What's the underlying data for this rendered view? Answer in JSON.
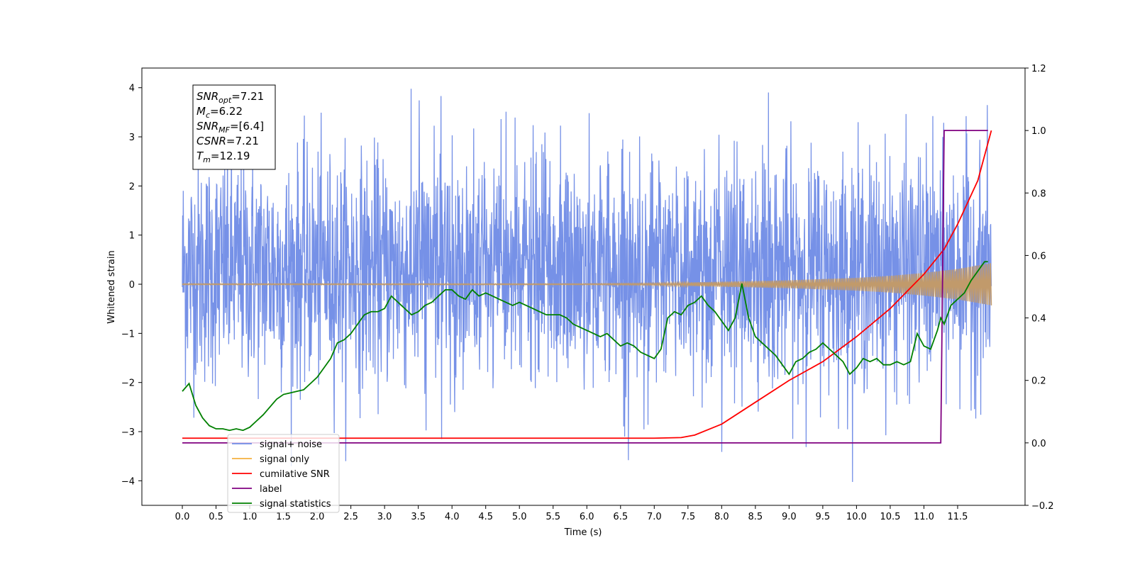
{
  "chart_data": {
    "type": "line",
    "xlabel": "Time (s)",
    "ylabel": "Whitened strain",
    "xlim": [
      -0.6,
      12.5
    ],
    "xticks": [
      0.0,
      0.5,
      1.0,
      1.5,
      2.0,
      2.5,
      3.0,
      3.5,
      4.0,
      4.5,
      5.0,
      5.5,
      6.0,
      6.5,
      7.0,
      7.5,
      8.0,
      8.5,
      9.0,
      9.5,
      10.0,
      10.5,
      11.0,
      11.5
    ],
    "ylim_left": [
      -4.5,
      4.4
    ],
    "yticks_left": [
      -4,
      -3,
      -2,
      -1,
      0,
      1,
      2,
      3,
      4
    ],
    "ylim_right": [
      -0.2,
      1.2
    ],
    "yticks_right": [
      -0.2,
      0.0,
      0.2,
      0.4,
      0.6,
      0.8,
      1.0,
      1.2
    ],
    "grid": false,
    "legend_position": "lower-left",
    "info_box": {
      "lines": [
        {
          "main": "SNR",
          "sub": "opt",
          "rest": "=7.21"
        },
        {
          "main": "M",
          "sub": "c",
          "rest": "=6.22"
        },
        {
          "main": "SNR",
          "sub": "MF",
          "rest": "=[6.4]"
        },
        {
          "main": "CSNR",
          "sub": "",
          "rest": "=7.21"
        },
        {
          "main": "T",
          "sub": "m",
          "rest": "=12.19"
        }
      ]
    },
    "legend": [
      {
        "name": "signal+ noise",
        "color": "#6f8be6"
      },
      {
        "name": "signal only",
        "color": "#f5b041"
      },
      {
        "name": "cumilative SNR",
        "color": "#ff0000"
      },
      {
        "name": "label",
        "color": "#800080"
      },
      {
        "name": "signal statistics",
        "color": "#008000"
      }
    ],
    "series": [
      {
        "name": "signal+ noise",
        "axis": "left",
        "color": "#6f8be6",
        "x_range": [
          0.0,
          12.0
        ],
        "band_mean": 0.3,
        "band_min": -4.1,
        "band_max": 4.05
      },
      {
        "name": "signal only",
        "axis": "left",
        "color": "#c19a6b",
        "envelope_x": [
          0.0,
          6.0,
          7.0,
          8.0,
          9.0,
          10.0,
          10.5,
          11.0,
          11.5,
          12.0
        ],
        "envelope_amp": [
          0.01,
          0.01,
          0.02,
          0.05,
          0.08,
          0.13,
          0.17,
          0.23,
          0.31,
          0.43
        ]
      },
      {
        "name": "cumilative SNR",
        "axis": "right",
        "color": "#ff0000",
        "x": [
          0.0,
          7.0,
          7.4,
          7.6,
          8.0,
          8.5,
          9.0,
          9.5,
          10.0,
          10.5,
          11.0,
          11.3,
          11.5,
          11.8,
          12.0
        ],
        "y": [
          0.015,
          0.015,
          0.017,
          0.025,
          0.06,
          0.13,
          0.2,
          0.26,
          0.34,
          0.43,
          0.54,
          0.62,
          0.7,
          0.84,
          1.0
        ]
      },
      {
        "name": "label",
        "axis": "right",
        "color": "#800080",
        "x": [
          0.0,
          11.25,
          11.3,
          11.95
        ],
        "y": [
          0.0,
          0.0,
          1.0,
          1.0
        ]
      },
      {
        "name": "signal statistics",
        "axis": "right",
        "color": "#008000",
        "x": [
          0.0,
          0.1,
          0.2,
          0.3,
          0.4,
          0.5,
          0.6,
          0.7,
          0.8,
          0.9,
          1.0,
          1.1,
          1.2,
          1.3,
          1.4,
          1.5,
          1.6,
          1.7,
          1.8,
          1.9,
          2.0,
          2.1,
          2.2,
          2.3,
          2.4,
          2.5,
          2.6,
          2.7,
          2.8,
          2.9,
          3.0,
          3.1,
          3.2,
          3.3,
          3.4,
          3.5,
          3.6,
          3.7,
          3.8,
          3.9,
          4.0,
          4.1,
          4.2,
          4.3,
          4.4,
          4.5,
          4.6,
          4.7,
          4.8,
          4.9,
          5.0,
          5.1,
          5.2,
          5.3,
          5.4,
          5.5,
          5.6,
          5.7,
          5.8,
          5.9,
          6.0,
          6.1,
          6.2,
          6.3,
          6.4,
          6.5,
          6.6,
          6.7,
          6.8,
          6.9,
          7.0,
          7.1,
          7.2,
          7.3,
          7.4,
          7.5,
          7.6,
          7.7,
          7.8,
          7.9,
          8.0,
          8.1,
          8.2,
          8.3,
          8.4,
          8.5,
          8.6,
          8.7,
          8.8,
          8.9,
          9.0,
          9.1,
          9.2,
          9.3,
          9.4,
          9.5,
          9.6,
          9.7,
          9.8,
          9.9,
          10.0,
          10.1,
          10.2,
          10.3,
          10.4,
          10.5,
          10.6,
          10.7,
          10.8,
          10.9,
          11.0,
          11.1,
          11.2,
          11.25,
          11.3,
          11.4,
          11.5,
          11.6,
          11.7,
          11.8,
          11.9,
          11.95
        ],
        "y": [
          0.165,
          0.19,
          0.12,
          0.08,
          0.055,
          0.045,
          0.045,
          0.04,
          0.045,
          0.04,
          0.05,
          0.07,
          0.09,
          0.115,
          0.14,
          0.155,
          0.16,
          0.165,
          0.17,
          0.19,
          0.21,
          0.24,
          0.27,
          0.32,
          0.33,
          0.35,
          0.38,
          0.41,
          0.42,
          0.42,
          0.43,
          0.47,
          0.45,
          0.43,
          0.41,
          0.42,
          0.44,
          0.45,
          0.47,
          0.49,
          0.49,
          0.47,
          0.46,
          0.49,
          0.47,
          0.48,
          0.47,
          0.46,
          0.45,
          0.44,
          0.45,
          0.44,
          0.43,
          0.42,
          0.41,
          0.41,
          0.41,
          0.4,
          0.38,
          0.37,
          0.36,
          0.35,
          0.34,
          0.35,
          0.33,
          0.31,
          0.32,
          0.31,
          0.29,
          0.28,
          0.27,
          0.3,
          0.4,
          0.42,
          0.41,
          0.44,
          0.45,
          0.47,
          0.44,
          0.42,
          0.39,
          0.36,
          0.4,
          0.51,
          0.4,
          0.34,
          0.32,
          0.3,
          0.28,
          0.25,
          0.22,
          0.26,
          0.27,
          0.29,
          0.3,
          0.32,
          0.3,
          0.28,
          0.26,
          0.22,
          0.24,
          0.27,
          0.26,
          0.27,
          0.25,
          0.25,
          0.26,
          0.25,
          0.26,
          0.35,
          0.31,
          0.3,
          0.36,
          0.4,
          0.38,
          0.44,
          0.46,
          0.48,
          0.52,
          0.55,
          0.58,
          0.58
        ]
      }
    ]
  }
}
